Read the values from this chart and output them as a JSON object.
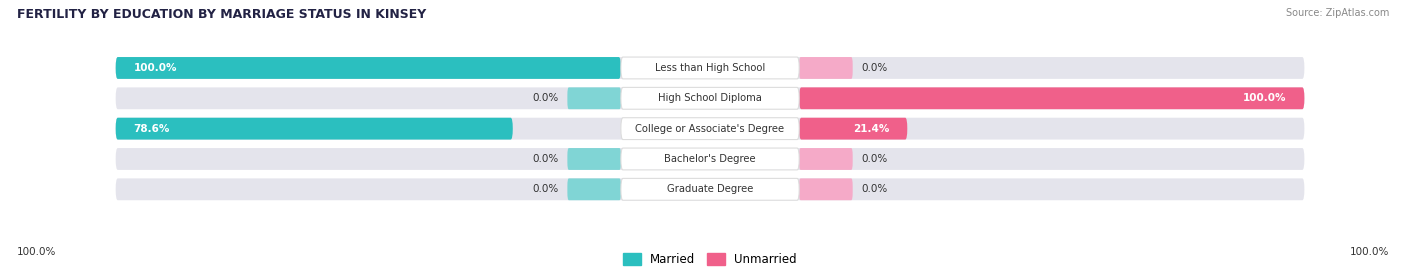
{
  "title": "FERTILITY BY EDUCATION BY MARRIAGE STATUS IN KINSEY",
  "source": "Source: ZipAtlas.com",
  "categories": [
    "Less than High School",
    "High School Diploma",
    "College or Associate's Degree",
    "Bachelor's Degree",
    "Graduate Degree"
  ],
  "married_values": [
    100.0,
    0.0,
    78.6,
    0.0,
    0.0
  ],
  "unmarried_values": [
    0.0,
    100.0,
    21.4,
    0.0,
    0.0
  ],
  "married_color": "#2bbfbf",
  "unmarried_color": "#f0608a",
  "married_light_color": "#80d5d5",
  "unmarried_light_color": "#f5aac8",
  "bar_bg_color": "#e4e4ec",
  "bg_color": "#ffffff",
  "text_color": "#333333",
  "white_text": "#ffffff",
  "axis_label_left": "100.0%",
  "axis_label_right": "100.0%"
}
